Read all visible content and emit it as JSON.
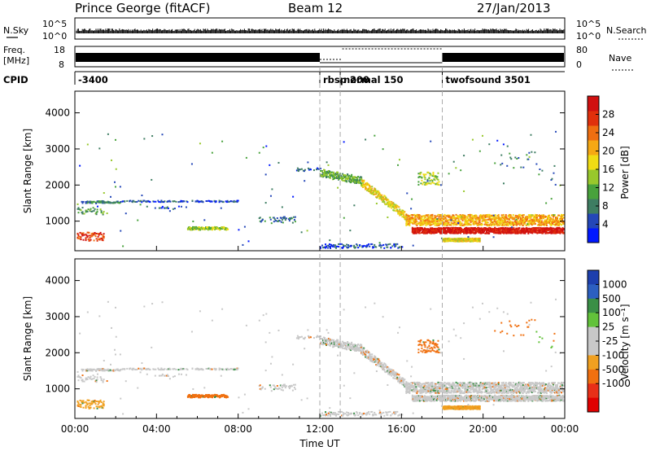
{
  "header": {
    "station": "Prince George (fitACF)",
    "beam": "Beam 12",
    "date": "27/Jan/2013"
  },
  "top_panels": {
    "nsky_label": "N.Sky",
    "nsky_ticks": [
      "10^5",
      "10^0"
    ],
    "nsearch_label": "N.Search",
    "freq_label_1": "Freq.",
    "freq_label_2": "[MHz]",
    "freq_ticks": [
      "18",
      "8"
    ],
    "nave_ticks": [
      "80",
      "0"
    ],
    "nave_label": "Nave",
    "cpid_label": "CPID",
    "cpid_segments": [
      {
        "label": "-3400",
        "start": 0,
        "end": 12
      },
      {
        "label": "rbsp 200",
        "start": 12,
        "end": 13
      },
      {
        "label": "normal 150",
        "start": 13,
        "end": 18
      },
      {
        "label": "twofsound 3501",
        "start": 18,
        "end": 24
      }
    ]
  },
  "colors": {
    "power_scale": [
      "#0018ff",
      "#2447b8",
      "#3e7d62",
      "#48a23c",
      "#98c82c",
      "#f0dc14",
      "#f5a814",
      "#ef6e10",
      "#e0300c",
      "#d01010"
    ],
    "velocity_scale": [
      "#1d3fae",
      "#2c5fc0",
      "#3a8f46",
      "#62c23a",
      "#c8c8c8",
      "#c8c8c8",
      "#f0a020",
      "#f07010",
      "#e83018",
      "#e00000"
    ]
  },
  "chart_data": [
    {
      "type": "heatmap",
      "ylabel": "Slant Range [km]",
      "xlim": [
        0,
        24
      ],
      "ylim": [
        180,
        4600
      ],
      "y_ticks": [
        1000,
        2000,
        3000,
        4000
      ],
      "colorbar_label": "Power [dB]",
      "colorbar_ticks": [
        "4",
        "8",
        "12",
        "16",
        "20",
        "24",
        "28"
      ],
      "colorbar_range": [
        0,
        32
      ]
    },
    {
      "type": "heatmap",
      "ylabel": "Slant Range [km]",
      "xlabel": "Time UT",
      "xlim": [
        0,
        24
      ],
      "ylim": [
        180,
        4600
      ],
      "x_ticks": [
        "00:00",
        "04:00",
        "08:00",
        "12:00",
        "16:00",
        "20:00",
        "00:00"
      ],
      "y_ticks": [
        1000,
        2000,
        3000,
        4000
      ],
      "colorbar_label": "Velocity [m s⁻¹]",
      "colorbar_ticks": [
        "1000",
        "500",
        "100",
        "25",
        "-25",
        "-100",
        "-500",
        "-1000"
      ]
    }
  ]
}
